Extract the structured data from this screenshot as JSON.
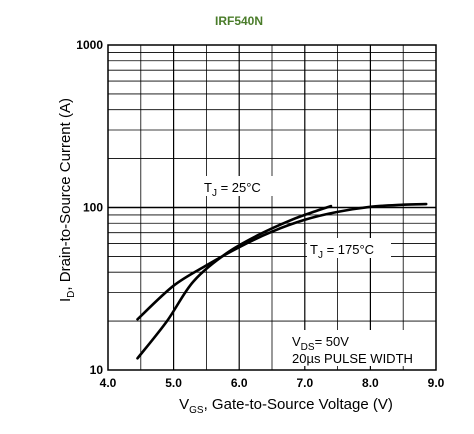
{
  "chart_data": {
    "type": "line",
    "title": "IRF540N",
    "xlabel": {
      "main": "V",
      "sub": "GS",
      "rest": ", Gate-to-Source Voltage (V)"
    },
    "ylabel": {
      "main": "I",
      "sub": "D",
      "rest": ",  Drain-to-Source Current (A)"
    },
    "xlim": [
      4.0,
      9.0
    ],
    "ylim": [
      10,
      1000
    ],
    "yscale": "log",
    "grid": true,
    "x_ticks": [
      "4.0",
      "5.0",
      "6.0",
      "7.0",
      "8.0",
      "9.0"
    ],
    "y_ticks": [
      "10",
      "100",
      "1000"
    ],
    "series": [
      {
        "name": "TJ = 25°C",
        "label": {
          "main": "T",
          "sub": "J",
          "rest": " = 25°C"
        },
        "points": [
          [
            4.45,
            11.8
          ],
          [
            4.9,
            20
          ],
          [
            5.3,
            35
          ],
          [
            5.8,
            52
          ],
          [
            6.3,
            68
          ],
          [
            6.8,
            84
          ],
          [
            7.2,
            96
          ],
          [
            7.4,
            102
          ]
        ]
      },
      {
        "name": "TJ = 175°C",
        "label": {
          "main": "T",
          "sub": "J",
          "rest": " = 175°C"
        },
        "points": [
          [
            4.45,
            20.5
          ],
          [
            5.0,
            33
          ],
          [
            5.5,
            44
          ],
          [
            6.0,
            57
          ],
          [
            6.5,
            71
          ],
          [
            7.0,
            84
          ],
          [
            7.5,
            94
          ],
          [
            8.0,
            101
          ],
          [
            8.5,
            104
          ],
          [
            8.85,
            105
          ]
        ]
      }
    ],
    "annotations": [
      {
        "main": "V",
        "sub": "DS",
        "rest": "= 50V"
      },
      {
        "text": "20µs PULSE WIDTH"
      }
    ]
  },
  "colors": {
    "title": "#4a7c2a",
    "line": "#000000",
    "grid": "#000000"
  }
}
